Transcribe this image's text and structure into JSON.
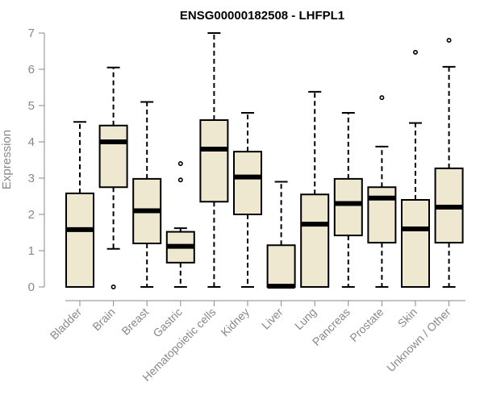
{
  "chart_data": {
    "type": "box",
    "title": "ENSG00000182508 - LHFPL1",
    "xlabel": "",
    "ylabel": "Expression",
    "ylim": [
      0,
      7
    ],
    "yticks": [
      "0",
      "1",
      "2",
      "3",
      "4",
      "5",
      "6",
      "7"
    ],
    "grid": false,
    "box_fill": "#EEE8D0",
    "categories": [
      "Bladder",
      "Brain",
      "Breast",
      "Gastric",
      "Hematopoietic cells",
      "Kidney",
      "Liver",
      "Lung",
      "Pancreas",
      "Prostate",
      "Skin",
      "Unknown / Other"
    ],
    "boxes": [
      {
        "min": 0.0,
        "q1": 0.0,
        "median": 1.58,
        "q3": 2.58,
        "max": 4.55,
        "outliers": []
      },
      {
        "min": 1.05,
        "q1": 2.75,
        "median": 4.0,
        "q3": 4.45,
        "max": 6.05,
        "outliers": [
          0.0
        ]
      },
      {
        "min": 0.0,
        "q1": 1.2,
        "median": 2.1,
        "q3": 2.98,
        "max": 5.1,
        "outliers": []
      },
      {
        "min": 0.0,
        "q1": 0.67,
        "median": 1.12,
        "q3": 1.52,
        "max": 1.62,
        "outliers": [
          2.95,
          3.4
        ]
      },
      {
        "min": 0.0,
        "q1": 2.35,
        "median": 3.8,
        "q3": 4.6,
        "max": 7.0,
        "outliers": []
      },
      {
        "min": 0.0,
        "q1": 2.0,
        "median": 3.03,
        "q3": 3.73,
        "max": 4.8,
        "outliers": []
      },
      {
        "min": 0.0,
        "q1": 0.0,
        "median": 0.02,
        "q3": 1.15,
        "max": 2.9,
        "outliers": []
      },
      {
        "min": 0.0,
        "q1": 0.0,
        "median": 1.73,
        "q3": 2.55,
        "max": 5.38,
        "outliers": []
      },
      {
        "min": 0.0,
        "q1": 1.42,
        "median": 2.3,
        "q3": 2.98,
        "max": 4.8,
        "outliers": []
      },
      {
        "min": 0.0,
        "q1": 1.22,
        "median": 2.45,
        "q3": 2.75,
        "max": 3.87,
        "outliers": [
          5.22
        ]
      },
      {
        "min": 0.0,
        "q1": 0.0,
        "median": 1.6,
        "q3": 2.4,
        "max": 4.52,
        "outliers": [
          6.47
        ]
      },
      {
        "min": 0.0,
        "q1": 1.22,
        "median": 2.2,
        "q3": 3.27,
        "max": 6.07,
        "outliers": [
          6.8
        ]
      }
    ]
  }
}
